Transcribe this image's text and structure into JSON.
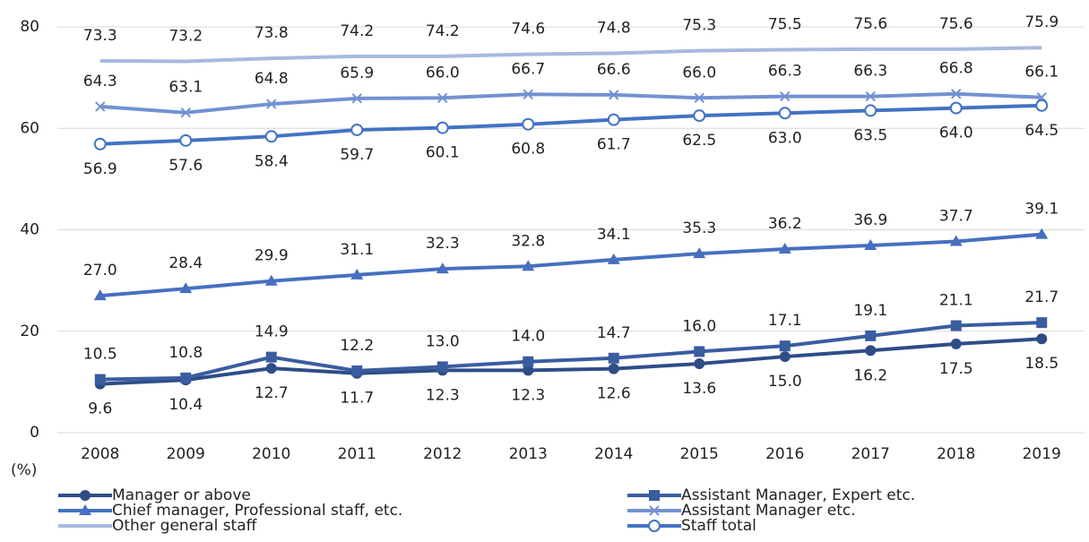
{
  "chart_data": {
    "type": "line",
    "y_label": "(%)",
    "categories": [
      "2008",
      "2009",
      "2010",
      "2011",
      "2012",
      "2013",
      "2014",
      "2015",
      "2016",
      "2017",
      "2018",
      "2019"
    ],
    "ylim": [
      0,
      80
    ],
    "yticks": [
      0,
      20,
      40,
      60,
      80
    ],
    "grid": true,
    "series": [
      {
        "name": "Manager or above",
        "color": "#2e4d87",
        "marker": "circle",
        "label_position": "below",
        "values": [
          9.6,
          10.4,
          12.7,
          11.7,
          12.3,
          12.3,
          12.6,
          13.6,
          15.0,
          16.2,
          17.5,
          18.5
        ],
        "value_labels": [
          "9.6",
          "10.4",
          "12.7",
          "11.7",
          "12.3",
          "12.3",
          "12.6",
          "13.6",
          "15.0",
          "16.2",
          "17.5",
          "18.5"
        ]
      },
      {
        "name": "Assistant Manager, Expert etc.",
        "color": "#3a5da0",
        "marker": "square",
        "label_position": "above",
        "values": [
          10.5,
          10.8,
          14.9,
          12.2,
          13.0,
          14.0,
          14.7,
          16.0,
          17.1,
          19.1,
          21.1,
          21.7
        ],
        "value_labels": [
          "10.5",
          "10.8",
          "14.9",
          "12.2",
          "13.0",
          "14.0",
          "14.7",
          "16.0",
          "17.1",
          "19.1",
          "21.1",
          "21.7"
        ]
      },
      {
        "name": "Chief manager, Professional staff, etc.",
        "color": "#4670c0",
        "marker": "triangle",
        "label_position": "above",
        "values": [
          27.0,
          28.4,
          29.9,
          31.1,
          32.3,
          32.8,
          34.1,
          35.3,
          36.2,
          36.9,
          37.7,
          39.1
        ],
        "value_labels": [
          "27.0",
          "28.4",
          "29.9",
          "31.1",
          "32.3",
          "32.8",
          "34.1",
          "35.3",
          "36.2",
          "36.9",
          "37.7",
          "39.1"
        ]
      },
      {
        "name": "Assistant Manager etc.",
        "color": "#7391d2",
        "marker": "x",
        "label_position": "above",
        "values": [
          64.3,
          63.1,
          64.8,
          65.9,
          66.0,
          66.7,
          66.6,
          66.0,
          66.3,
          66.3,
          66.8,
          66.1
        ],
        "value_labels": [
          "64.3",
          "63.1",
          "64.8",
          "65.9",
          "66.0",
          "66.7",
          "66.6",
          "66.0",
          "66.3",
          "66.3",
          "66.8",
          "66.1"
        ]
      },
      {
        "name": "Other general staff",
        "color": "#a7b9df",
        "marker": "none",
        "label_position": "above",
        "values": [
          73.3,
          73.2,
          73.8,
          74.2,
          74.2,
          74.6,
          74.8,
          75.3,
          75.5,
          75.6,
          75.6,
          75.9
        ],
        "value_labels": [
          "73.3",
          "73.2",
          "73.8",
          "74.2",
          "74.2",
          "74.6",
          "74.8",
          "75.3",
          "75.5",
          "75.6",
          "75.6",
          "75.9"
        ]
      },
      {
        "name": "Staff total",
        "color": "#4472c4",
        "marker": "open-circle",
        "label_position": "below",
        "values": [
          56.9,
          57.6,
          58.4,
          59.7,
          60.1,
          60.8,
          61.7,
          62.5,
          63.0,
          63.5,
          64.0,
          64.5
        ],
        "value_labels": [
          "56.9",
          "57.6",
          "58.4",
          "59.7",
          "60.1",
          "60.8",
          "61.7",
          "62.5",
          "63.0",
          "63.5",
          "64.0",
          "64.5"
        ]
      }
    ]
  }
}
